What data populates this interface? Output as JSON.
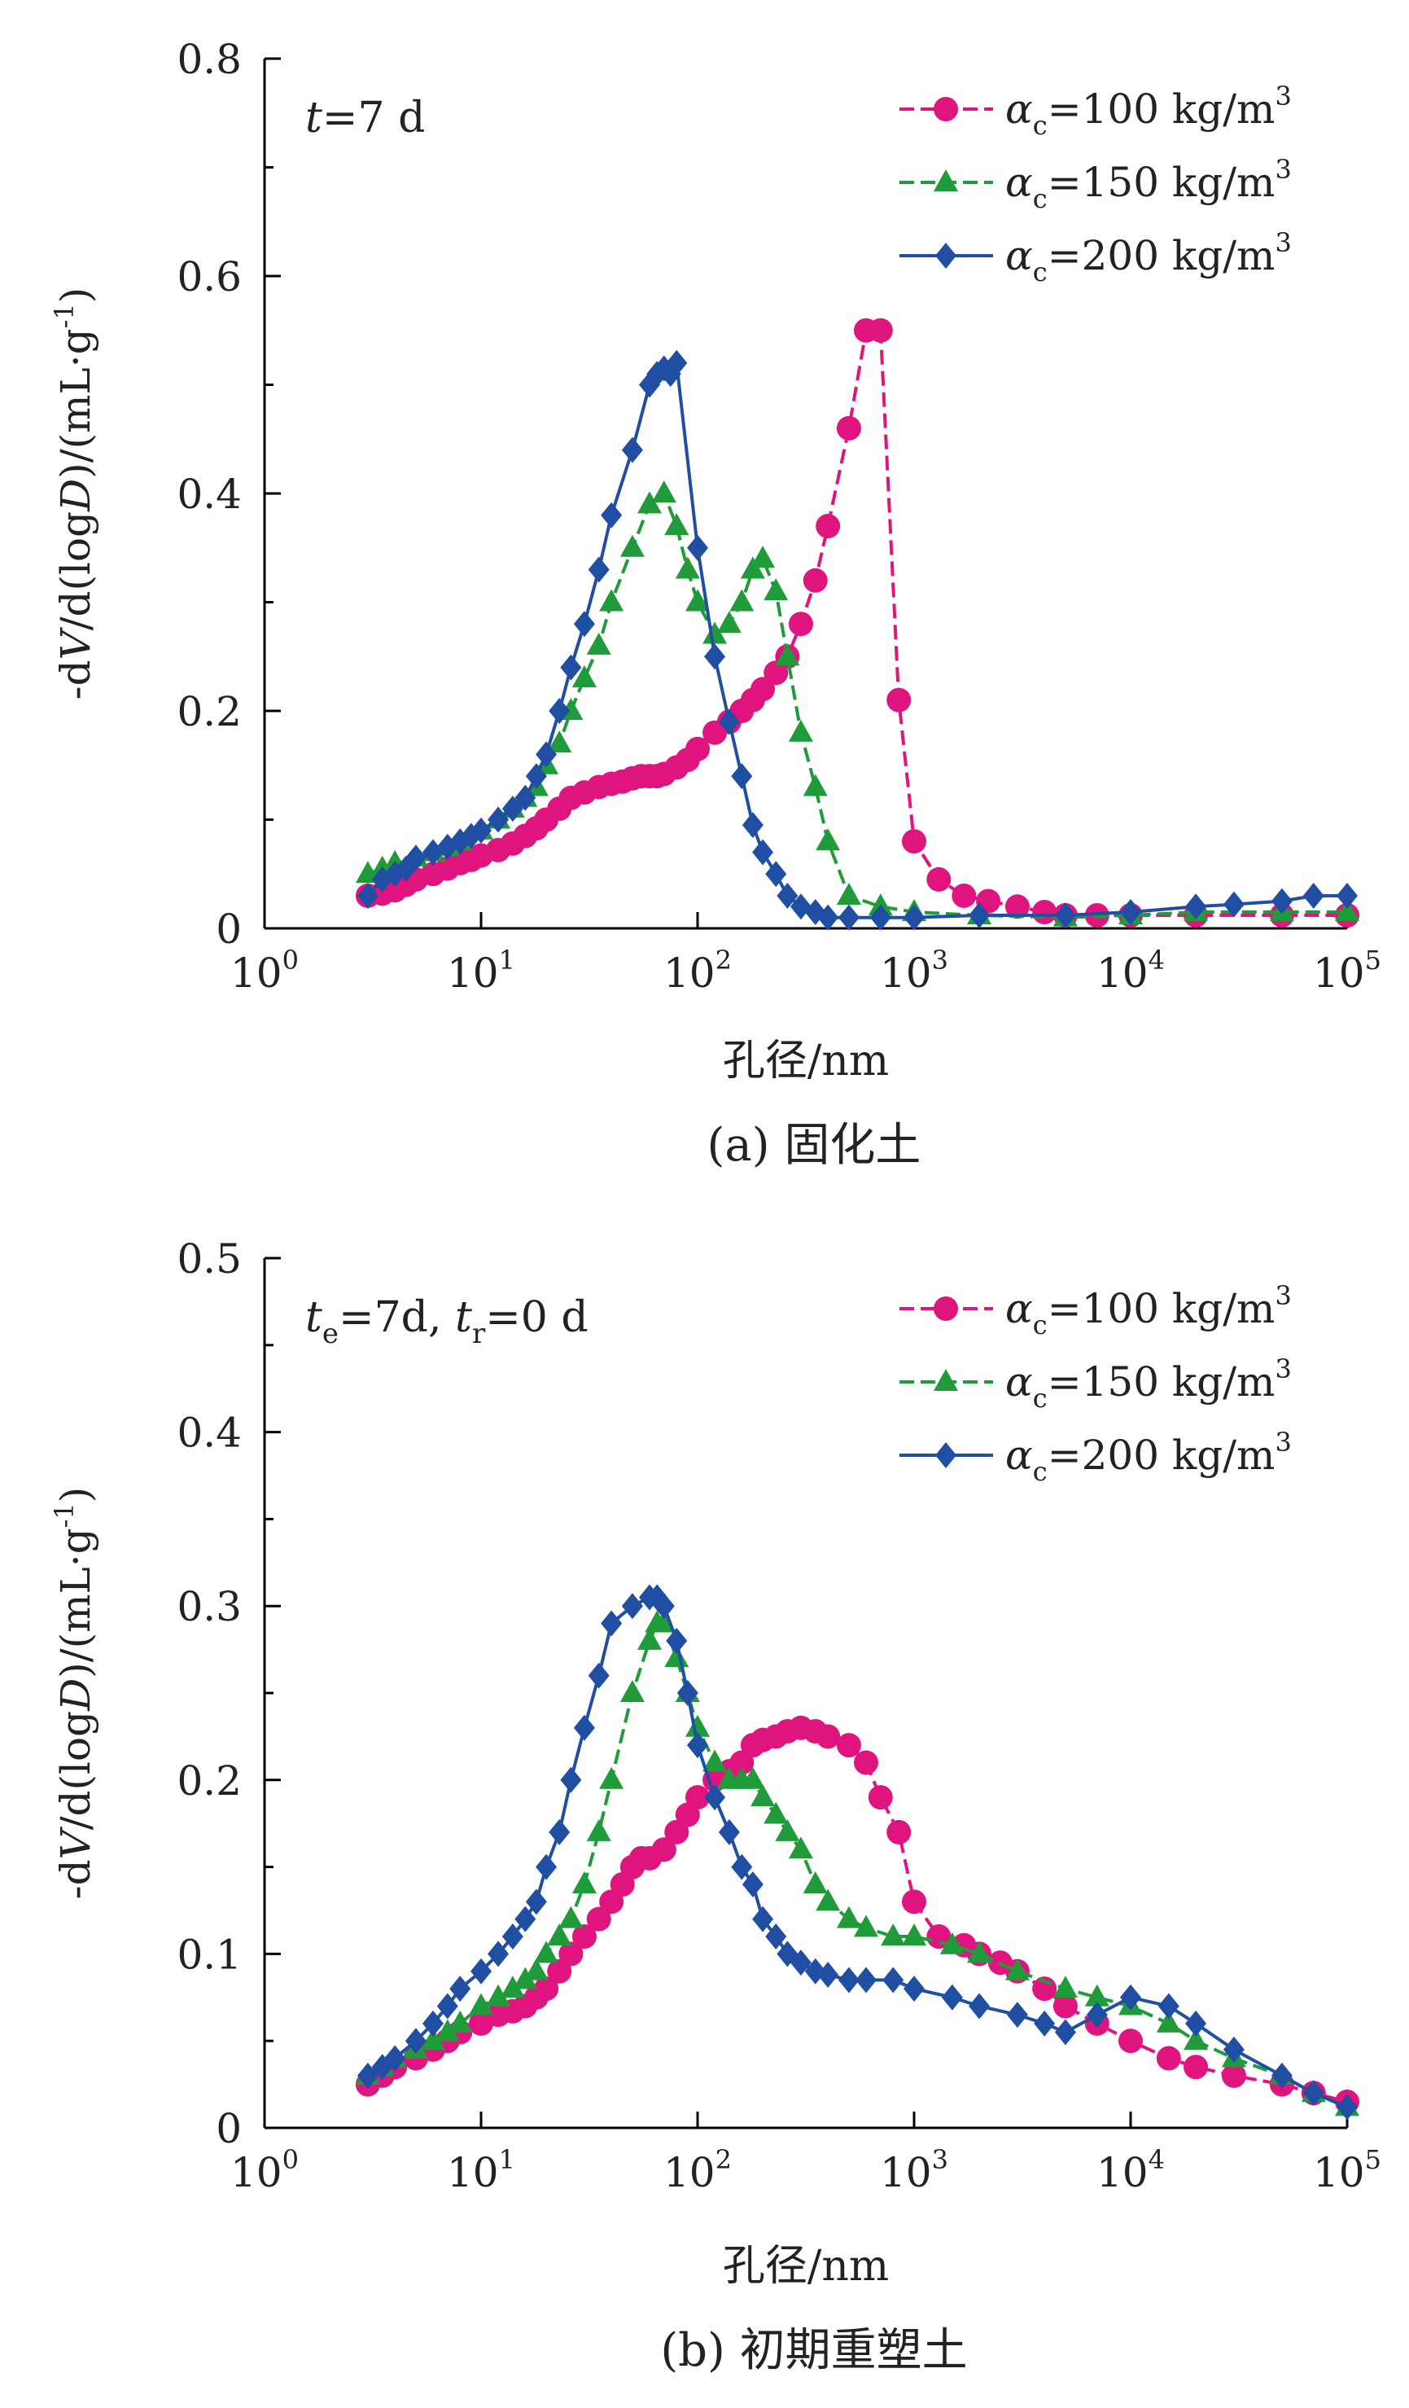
{
  "chart_data": [
    {
      "type": "line",
      "panel_caption": "(a) 固化土",
      "annotation": {
        "parts": [
          {
            "t": "t",
            "italic": true
          },
          {
            "t": "=7 d"
          }
        ]
      },
      "xlabel": "孔径/nm",
      "ylabel": "-dV/d(logD)/(mL·g-1)",
      "x_scale": "log",
      "xlim": [
        1,
        100000
      ],
      "ylim": [
        0,
        0.8
      ],
      "yticks": [
        0,
        0.2,
        0.4,
        0.6,
        0.8
      ],
      "ytick_labels": [
        "0",
        "0.2",
        "0.4",
        "0.6",
        "0.8"
      ],
      "xtick_labels": [
        {
          "base": "10",
          "exp": "0"
        },
        {
          "base": "10",
          "exp": "1"
        },
        {
          "base": "10",
          "exp": "2"
        },
        {
          "base": "10",
          "exp": "3"
        },
        {
          "base": "10",
          "exp": "4"
        },
        {
          "base": "10",
          "exp": "5"
        }
      ],
      "legend_position": "top-right",
      "grid": false,
      "series": [
        {
          "name": "αc=100 kg/m3",
          "legend_parts": {
            "sym": "α",
            "sub": "c",
            "text": "=100 kg/m",
            "sup": "3"
          },
          "color": "#e0147f",
          "marker": "circle",
          "dash": "dash",
          "x": [
            3,
            3.5,
            4,
            4.5,
            5,
            6,
            7,
            8,
            9,
            10,
            12,
            14,
            16,
            18,
            20,
            23,
            26,
            30,
            35,
            40,
            45,
            50,
            55,
            60,
            65,
            70,
            80,
            90,
            100,
            120,
            140,
            160,
            180,
            200,
            230,
            260,
            300,
            350,
            400,
            500,
            600,
            700,
            850,
            1000,
            1300,
            1700,
            2200,
            3000,
            4000,
            5000,
            7000,
            10000,
            20000,
            50000,
            100000
          ],
          "y": [
            0.03,
            0.032,
            0.035,
            0.04,
            0.045,
            0.05,
            0.055,
            0.06,
            0.063,
            0.067,
            0.072,
            0.078,
            0.085,
            0.092,
            0.1,
            0.11,
            0.12,
            0.125,
            0.13,
            0.133,
            0.135,
            0.138,
            0.14,
            0.14,
            0.14,
            0.142,
            0.148,
            0.155,
            0.165,
            0.18,
            0.19,
            0.2,
            0.21,
            0.22,
            0.235,
            0.25,
            0.28,
            0.32,
            0.37,
            0.46,
            0.55,
            0.55,
            0.21,
            0.08,
            0.045,
            0.03,
            0.025,
            0.02,
            0.015,
            0.012,
            0.012,
            0.012,
            0.012,
            0.012,
            0.012
          ]
        },
        {
          "name": "αc=150 kg/m3",
          "legend_parts": {
            "sym": "α",
            "sub": "c",
            "text": "=150 kg/m",
            "sup": "3"
          },
          "color": "#1f9b3a",
          "marker": "triangle",
          "dash": "dash",
          "x": [
            3,
            3.5,
            4,
            5,
            6,
            7,
            8,
            10,
            12,
            14,
            16,
            18,
            20,
            23,
            26,
            30,
            35,
            40,
            50,
            60,
            70,
            80,
            90,
            100,
            120,
            140,
            160,
            180,
            200,
            230,
            260,
            300,
            350,
            400,
            500,
            700,
            1000,
            2000,
            5000,
            10000,
            20000,
            50000,
            100000
          ],
          "y": [
            0.05,
            0.055,
            0.06,
            0.065,
            0.07,
            0.075,
            0.08,
            0.09,
            0.1,
            0.11,
            0.12,
            0.13,
            0.15,
            0.17,
            0.2,
            0.23,
            0.26,
            0.3,
            0.35,
            0.39,
            0.4,
            0.37,
            0.33,
            0.3,
            0.27,
            0.28,
            0.3,
            0.33,
            0.34,
            0.31,
            0.25,
            0.18,
            0.13,
            0.08,
            0.03,
            0.02,
            0.015,
            0.012,
            0.01,
            0.012,
            0.015,
            0.015,
            0.015
          ]
        },
        {
          "name": "αc=200 kg/m3",
          "legend_parts": {
            "sym": "α",
            "sub": "c",
            "text": "=200 kg/m",
            "sup": "3"
          },
          "color": "#1f4ea3",
          "marker": "diamond",
          "dash": "solid",
          "x": [
            3,
            3.5,
            4,
            4.5,
            5,
            6,
            7,
            8,
            9,
            10,
            12,
            14,
            16,
            18,
            20,
            23,
            26,
            30,
            35,
            40,
            50,
            60,
            65,
            70,
            75,
            80,
            100,
            120,
            140,
            160,
            180,
            200,
            230,
            260,
            300,
            350,
            400,
            500,
            700,
            1000,
            2000,
            5000,
            10000,
            20000,
            30000,
            50000,
            70000,
            100000
          ],
          "y": [
            0.03,
            0.045,
            0.05,
            0.055,
            0.065,
            0.07,
            0.075,
            0.08,
            0.085,
            0.09,
            0.1,
            0.11,
            0.12,
            0.14,
            0.16,
            0.2,
            0.24,
            0.28,
            0.33,
            0.38,
            0.44,
            0.5,
            0.51,
            0.515,
            0.51,
            0.52,
            0.35,
            0.25,
            0.19,
            0.14,
            0.095,
            0.07,
            0.05,
            0.03,
            0.02,
            0.015,
            0.01,
            0.01,
            0.01,
            0.01,
            0.012,
            0.012,
            0.015,
            0.02,
            0.022,
            0.025,
            0.03,
            0.03
          ]
        }
      ]
    },
    {
      "type": "line",
      "panel_caption": "(b) 初期重塑土",
      "annotation": {
        "parts": [
          {
            "t": "t",
            "italic": true
          },
          {
            "t": "e",
            "sub": true
          },
          {
            "t": "=7d, "
          },
          {
            "t": "t",
            "italic": true
          },
          {
            "t": "r",
            "sub": true
          },
          {
            "t": "=0 d"
          }
        ]
      },
      "xlabel": "孔径/nm",
      "ylabel": "-dV/d(logD)/(mL·g-1)",
      "x_scale": "log",
      "xlim": [
        1,
        100000
      ],
      "ylim": [
        0,
        0.5
      ],
      "yticks": [
        0,
        0.1,
        0.2,
        0.3,
        0.4,
        0.5
      ],
      "ytick_labels": [
        "0",
        "0.1",
        "0.2",
        "0.3",
        "0.4",
        "0.5"
      ],
      "xtick_labels": [
        {
          "base": "10",
          "exp": "0"
        },
        {
          "base": "10",
          "exp": "1"
        },
        {
          "base": "10",
          "exp": "2"
        },
        {
          "base": "10",
          "exp": "3"
        },
        {
          "base": "10",
          "exp": "4"
        },
        {
          "base": "10",
          "exp": "5"
        }
      ],
      "legend_position": "top-right",
      "grid": false,
      "series": [
        {
          "name": "αc=100 kg/m3",
          "legend_parts": {
            "sym": "α",
            "sub": "c",
            "text": "=100 kg/m",
            "sup": "3"
          },
          "color": "#e0147f",
          "marker": "circle",
          "dash": "dash",
          "x": [
            3,
            3.5,
            4,
            5,
            6,
            7,
            8,
            10,
            12,
            14,
            16,
            18,
            20,
            23,
            26,
            30,
            35,
            40,
            45,
            50,
            55,
            60,
            70,
            80,
            90,
            100,
            120,
            140,
            160,
            180,
            200,
            230,
            260,
            300,
            350,
            400,
            500,
            600,
            700,
            850,
            1000,
            1300,
            1700,
            2000,
            2500,
            3000,
            4000,
            5000,
            7000,
            10000,
            15000,
            20000,
            30000,
            50000,
            70000,
            100000
          ],
          "y": [
            0.025,
            0.03,
            0.035,
            0.04,
            0.045,
            0.05,
            0.055,
            0.06,
            0.065,
            0.067,
            0.07,
            0.075,
            0.08,
            0.09,
            0.1,
            0.11,
            0.12,
            0.13,
            0.14,
            0.15,
            0.155,
            0.155,
            0.16,
            0.17,
            0.18,
            0.19,
            0.2,
            0.205,
            0.21,
            0.22,
            0.223,
            0.225,
            0.228,
            0.23,
            0.228,
            0.225,
            0.22,
            0.21,
            0.19,
            0.17,
            0.13,
            0.11,
            0.105,
            0.1,
            0.095,
            0.09,
            0.08,
            0.07,
            0.06,
            0.05,
            0.04,
            0.035,
            0.03,
            0.025,
            0.02,
            0.015
          ]
        },
        {
          "name": "αc=150 kg/m3",
          "legend_parts": {
            "sym": "α",
            "sub": "c",
            "text": "=150 kg/m",
            "sup": "3"
          },
          "color": "#1f9b3a",
          "marker": "triangle",
          "dash": "dash",
          "x": [
            3,
            3.5,
            4,
            5,
            6,
            7,
            8,
            10,
            12,
            14,
            16,
            18,
            20,
            23,
            26,
            30,
            35,
            40,
            50,
            60,
            65,
            70,
            80,
            90,
            100,
            120,
            140,
            160,
            180,
            200,
            230,
            260,
            300,
            350,
            400,
            500,
            600,
            800,
            1000,
            1500,
            2000,
            3000,
            5000,
            7000,
            10000,
            15000,
            20000,
            30000,
            50000,
            70000,
            100000
          ],
          "y": [
            0.03,
            0.035,
            0.04,
            0.045,
            0.05,
            0.055,
            0.06,
            0.07,
            0.075,
            0.08,
            0.085,
            0.09,
            0.1,
            0.11,
            0.12,
            0.14,
            0.17,
            0.2,
            0.25,
            0.28,
            0.29,
            0.29,
            0.27,
            0.25,
            0.23,
            0.21,
            0.2,
            0.2,
            0.2,
            0.19,
            0.18,
            0.17,
            0.16,
            0.14,
            0.13,
            0.12,
            0.115,
            0.11,
            0.11,
            0.105,
            0.1,
            0.09,
            0.08,
            0.075,
            0.07,
            0.06,
            0.05,
            0.04,
            0.03,
            0.02,
            0.012
          ]
        },
        {
          "name": "αc=200 kg/m3",
          "legend_parts": {
            "sym": "α",
            "sub": "c",
            "text": "=200 kg/m",
            "sup": "3"
          },
          "color": "#1f4ea3",
          "marker": "diamond",
          "dash": "solid",
          "x": [
            3,
            3.5,
            4,
            5,
            6,
            7,
            8,
            10,
            12,
            14,
            16,
            18,
            20,
            23,
            26,
            30,
            35,
            40,
            50,
            60,
            65,
            70,
            80,
            90,
            100,
            120,
            140,
            160,
            180,
            200,
            230,
            260,
            300,
            350,
            400,
            500,
            600,
            800,
            1000,
            1500,
            2000,
            3000,
            4000,
            5000,
            7000,
            10000,
            15000,
            20000,
            30000,
            50000,
            70000,
            100000
          ],
          "y": [
            0.03,
            0.035,
            0.04,
            0.05,
            0.06,
            0.07,
            0.08,
            0.09,
            0.1,
            0.11,
            0.12,
            0.13,
            0.15,
            0.17,
            0.2,
            0.23,
            0.26,
            0.29,
            0.3,
            0.305,
            0.305,
            0.3,
            0.28,
            0.25,
            0.22,
            0.19,
            0.17,
            0.15,
            0.14,
            0.12,
            0.11,
            0.1,
            0.095,
            0.09,
            0.088,
            0.085,
            0.085,
            0.085,
            0.08,
            0.075,
            0.07,
            0.065,
            0.06,
            0.055,
            0.065,
            0.075,
            0.07,
            0.06,
            0.045,
            0.03,
            0.02,
            0.012
          ]
        }
      ]
    }
  ]
}
